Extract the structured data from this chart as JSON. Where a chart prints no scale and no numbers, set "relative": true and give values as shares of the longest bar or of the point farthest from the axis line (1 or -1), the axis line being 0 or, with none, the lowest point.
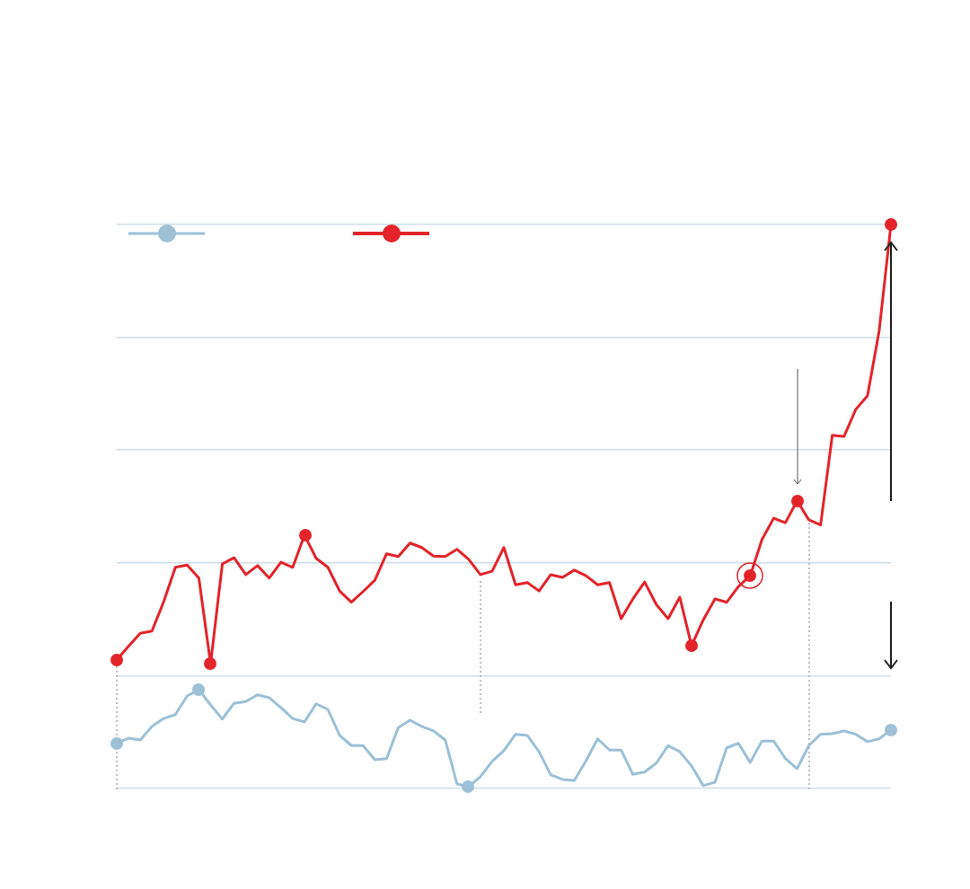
{
  "chart_data": {
    "type": "line",
    "relative": true,
    "categories": [
      null,
      null,
      null,
      null,
      null,
      null,
      null,
      null,
      null,
      null,
      null,
      null,
      null,
      null,
      null,
      null,
      null,
      null,
      null,
      null,
      null,
      null,
      null,
      null,
      null,
      null,
      null,
      null,
      null,
      null,
      null,
      null,
      null,
      null,
      null,
      null,
      null,
      null,
      null,
      null,
      null,
      null,
      null,
      null,
      null,
      null,
      null,
      null,
      null,
      null,
      null,
      null,
      null,
      null,
      null,
      null,
      null,
      null,
      null,
      null,
      null,
      null,
      null,
      null,
      null,
      null,
      null
    ],
    "grid": "y",
    "line_style": "solid",
    "series": [
      {
        "color": "#9dc0d6",
        "values": [
          0.08,
          0.089,
          0.086,
          0.11,
          0.124,
          0.131,
          0.164,
          0.175,
          0.148,
          0.123,
          0.151,
          0.154,
          0.166,
          0.161,
          0.143,
          0.124,
          0.118,
          0.15,
          0.14,
          0.094,
          0.076,
          0.076,
          0.051,
          0.053,
          0.108,
          0.121,
          0.11,
          0.102,
          0.086,
          0.008,
          0.003,
          0.021,
          0.048,
          0.067,
          0.096,
          0.094,
          0.065,
          0.024,
          0.016,
          0.014,
          0.049,
          0.088,
          0.068,
          0.068,
          0.025,
          0.029,
          0.045,
          0.076,
          0.065,
          0.04,
          0.005,
          0.011,
          0.072,
          0.08,
          0.046,
          0.084,
          0.084,
          0.053,
          0.035,
          0.076,
          0.096,
          0.097,
          0.102,
          0.096,
          0.083,
          0.088,
          0.104
        ]
      },
      {
        "color": "#e3242b",
        "values": [
          0.228,
          0.252,
          0.275,
          0.279,
          0.331,
          0.392,
          0.396,
          0.373,
          0.221,
          0.398,
          0.409,
          0.379,
          0.395,
          0.373,
          0.401,
          0.392,
          0.449,
          0.408,
          0.392,
          0.35,
          0.33,
          0.349,
          0.369,
          0.416,
          0.411,
          0.435,
          0.427,
          0.412,
          0.411,
          0.424,
          0.406,
          0.379,
          0.385,
          0.427,
          0.361,
          0.365,
          0.35,
          0.379,
          0.374,
          0.387,
          0.377,
          0.361,
          0.365,
          0.301,
          0.336,
          0.366,
          0.326,
          0.301,
          0.339,
          0.253,
          0.299,
          0.336,
          0.33,
          0.358,
          0.377,
          0.441,
          0.479,
          0.471,
          0.51,
          0.476,
          0.467,
          0.626,
          0.624,
          0.672,
          0.696,
          0.812,
          1
        ]
      }
    ]
  }
}
